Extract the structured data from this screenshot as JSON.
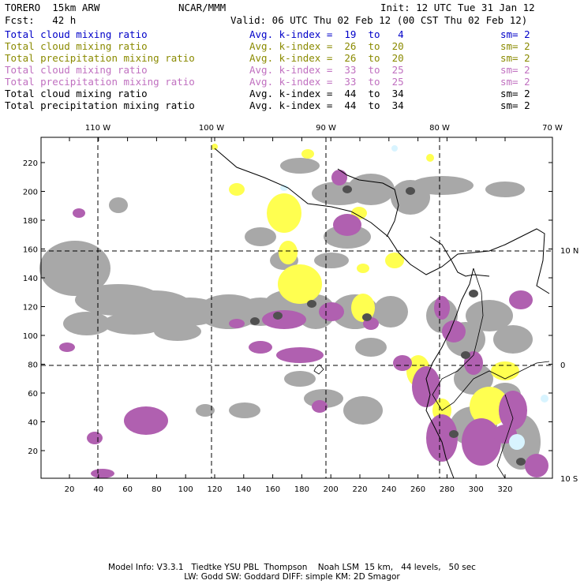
{
  "header": {
    "model": "TORERO  15km ARW",
    "org": "NCAR/MMM",
    "init": "Init: 12 UTC Tue 31 Jan 12",
    "fcst": "Fcst:   42 h",
    "valid": "Valid: 06 UTC Thu 02 Feb 12 (00 CST Thu 02 Feb 12)"
  },
  "legend": [
    {
      "field": "Total cloud mixing ratio",
      "k": "Avg. k-index =  19  to   4",
      "sm": "sm= 2",
      "color": "#0000c8"
    },
    {
      "field": "Total cloud mixing ratio",
      "k": "Avg. k-index =  26  to  20",
      "sm": "sm= 2",
      "color": "#8a8a00"
    },
    {
      "field": "Total precipitation mixing ratio",
      "k": "Avg. k-index =  26  to  20",
      "sm": "sm= 2",
      "color": "#8a8a00"
    },
    {
      "field": "Total cloud mixing ratio",
      "k": "Avg. k-index =  33  to  25",
      "sm": "sm= 2",
      "color": "#c070c0"
    },
    {
      "field": "Total precipitation mixing ratio",
      "k": "Avg. k-index =  33  to  25",
      "sm": "sm= 2",
      "color": "#c070c0"
    },
    {
      "field": "Total cloud mixing ratio",
      "k": "Avg. k-index =  44  to  34",
      "sm": "sm= 2",
      "color": "#000000"
    },
    {
      "field": "Total precipitation mixing ratio",
      "k": "Avg. k-index =  44  to  34",
      "sm": "sm= 2",
      "color": "#000000"
    }
  ],
  "map": {
    "lon_labels": [
      "110 W",
      "100 W",
      "90 W",
      "80 W",
      "70 W"
    ],
    "lat_labels": [
      "10 N",
      "0",
      "10 S"
    ],
    "x_ticks": [
      "20",
      "40",
      "60",
      "80",
      "100",
      "120",
      "140",
      "160",
      "180",
      "200",
      "220",
      "240",
      "260",
      "280",
      "300",
      "320"
    ],
    "y_ticks": [
      "20",
      "40",
      "60",
      "80",
      "100",
      "120",
      "140",
      "160",
      "180",
      "200",
      "220"
    ],
    "colors": {
      "gray": "#a8a8a8",
      "dark": "#505050",
      "yellow": "#ffff50",
      "purple": "#b060b0",
      "cyan": "#d8f4ff"
    }
  },
  "footer": {
    "line1": "Model Info: V3.3.1   Tiedtke YSU PBL  Thompson    Noah LSM  15 km,   44 levels,   50 sec",
    "line2": "LW: Godd SW: Goddard DIFF: simple KM: 2D Smagor"
  }
}
